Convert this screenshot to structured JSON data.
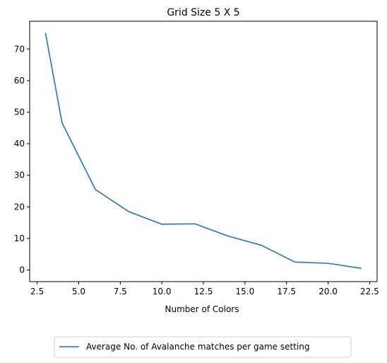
{
  "chart_data": {
    "type": "line",
    "title": "Grid Size 5 X 5",
    "xlabel": "Number of Colors",
    "ylabel": "",
    "xlim": [
      2.05,
      22.95
    ],
    "ylim": [
      -3.7,
      78.8
    ],
    "xticks": [
      2.5,
      5.0,
      7.5,
      10.0,
      12.5,
      15.0,
      17.5,
      20.0,
      22.5
    ],
    "xtick_labels": [
      "2.5",
      "5.0",
      "7.5",
      "10.0",
      "12.5",
      "15.0",
      "17.5",
      "20.0",
      "22.5"
    ],
    "yticks": [
      0,
      10,
      20,
      30,
      40,
      50,
      60,
      70
    ],
    "ytick_labels": [
      "0",
      "10",
      "20",
      "30",
      "40",
      "50",
      "60",
      "70"
    ],
    "grid": false,
    "legend_position": "below plot, centered",
    "series": [
      {
        "name": "Average No. of Avalanche matches per game setting",
        "color": "#1f77b4",
        "x": [
          3,
          4,
          6,
          8,
          10,
          12,
          14,
          16,
          18,
          20,
          22
        ],
        "y": [
          75.1,
          46.6,
          25.5,
          18.5,
          14.5,
          14.6,
          10.7,
          7.8,
          2.5,
          2.1,
          0.5
        ]
      }
    ]
  }
}
